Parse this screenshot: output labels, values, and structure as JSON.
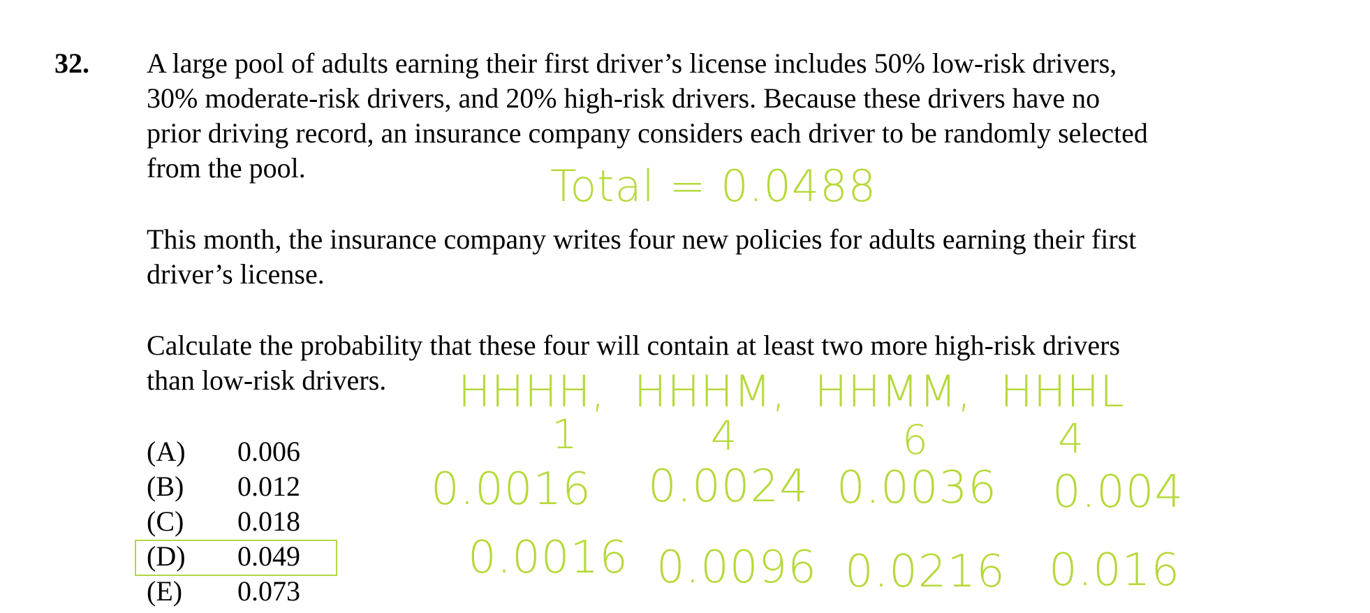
{
  "question": {
    "number": "32.",
    "paragraph1": [
      "A large pool of adults earning their first driver’s license includes 50% low-risk drivers,",
      "30% moderate-risk drivers, and 20% high-risk drivers.  Because these drivers have no",
      "prior driving record, an insurance company considers each driver to be randomly selected",
      "from the pool."
    ],
    "paragraph2": [
      "This month, the insurance company writes four new policies for adults earning their first",
      "driver’s license."
    ],
    "paragraph3": [
      "Calculate the probability that these four will contain at least two more high-risk drivers",
      "than low-risk drivers."
    ],
    "choices": [
      {
        "label": "(A)",
        "value": "0.006"
      },
      {
        "label": "(B)",
        "value": "0.012"
      },
      {
        "label": "(C)",
        "value": "0.018"
      },
      {
        "label": "(D)",
        "value": "0.049"
      },
      {
        "label": "(E)",
        "value": "0.073"
      }
    ],
    "selected_choice": "(D)"
  },
  "annotations": {
    "color": "#b5d939",
    "total": "Total = 0.0488",
    "combinations": "HHHH,  HHHM,  HHMM,  HHHL",
    "counts": [
      "1",
      "4",
      "6",
      "4"
    ],
    "row1": [
      "0.0016",
      "0.0024",
      "0.0036",
      "0.004"
    ],
    "row2": [
      "0.0016",
      "0.0096",
      "0.0216",
      "0.016"
    ]
  }
}
